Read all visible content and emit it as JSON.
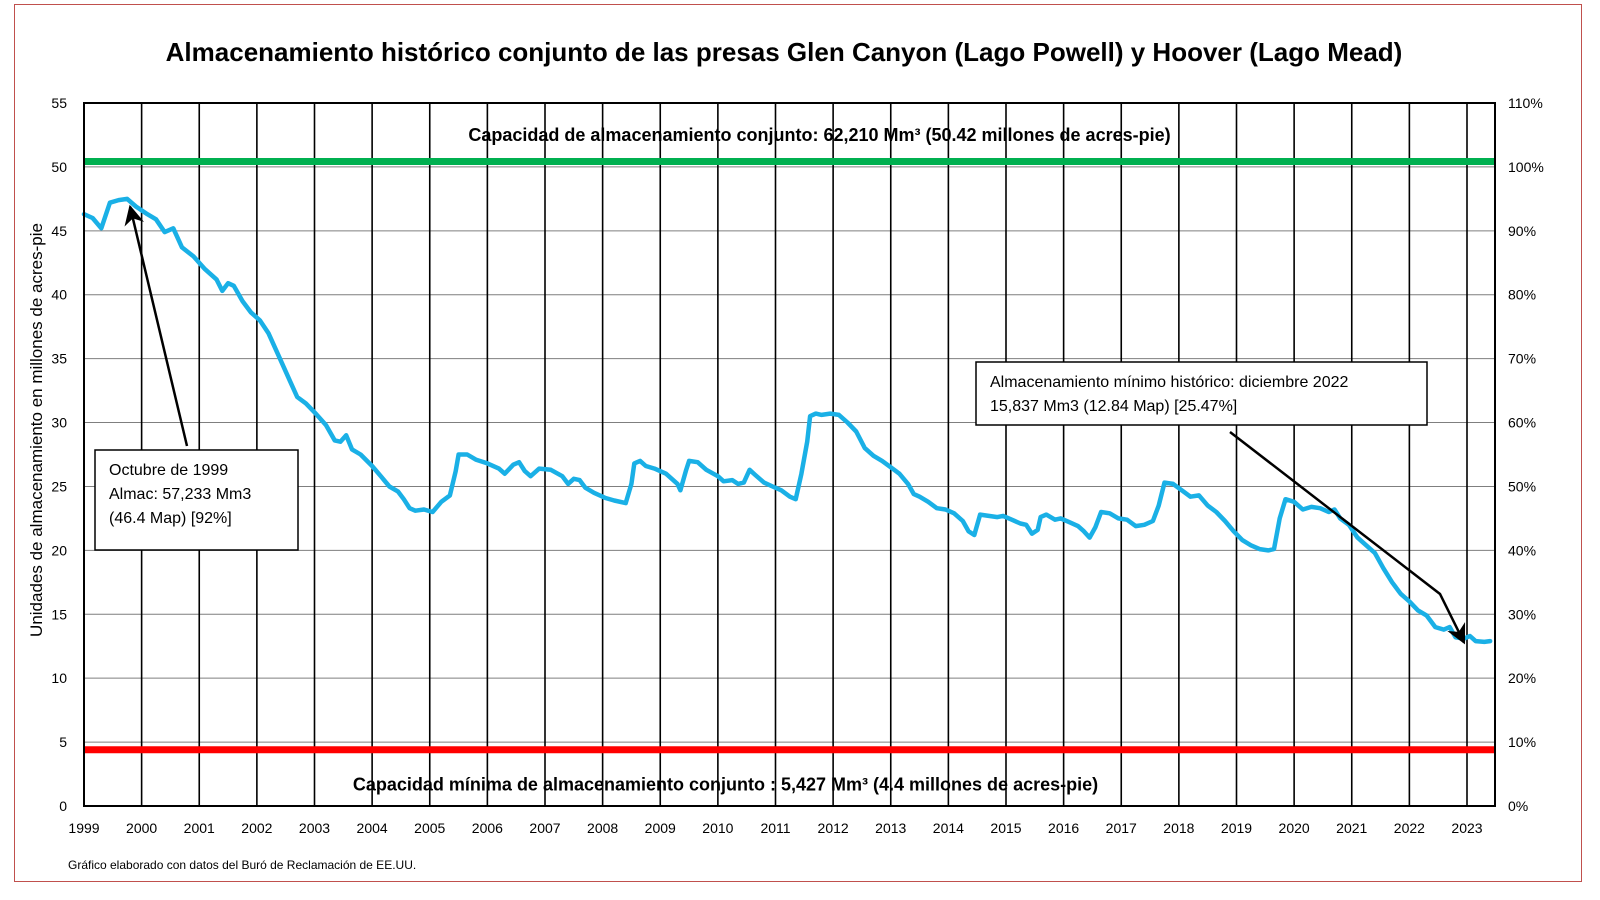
{
  "chart_data": {
    "type": "line",
    "title": "Almacenamiento histórico conjunto de las presas Glen Canyon (Lago Powell) y Hoover (Lago Mead)",
    "ylabel": "Unidades de almacenamiento en millones de acres-pie",
    "ylim": [
      0,
      55
    ],
    "y_ticks": [
      "0",
      "5",
      "10",
      "15",
      "20",
      "25",
      "30",
      "35",
      "40",
      "45",
      "50",
      "55"
    ],
    "y2lim": [
      0,
      110
    ],
    "y2_ticks": [
      "0%",
      "10%",
      "20%",
      "30%",
      "40%",
      "50%",
      "60%",
      "70%",
      "80%",
      "90%",
      "100%",
      "110%"
    ],
    "x_ticks": [
      "1999",
      "2000",
      "2001",
      "2002",
      "2003",
      "2004",
      "2005",
      "2006",
      "2007",
      "2008",
      "2009",
      "2010",
      "2011",
      "2012",
      "2013",
      "2014",
      "2015",
      "2016",
      "2017",
      "2018",
      "2019",
      "2020",
      "2021",
      "2022",
      "2023"
    ],
    "xlim": [
      1999,
      2023.3
    ],
    "grid": true,
    "series": [
      {
        "color": "#1ab0e6",
        "points": [
          [
            1999.0,
            46.3
          ],
          [
            1999.15,
            46.0
          ],
          [
            1999.3,
            45.2
          ],
          [
            1999.45,
            47.2
          ],
          [
            1999.6,
            47.4
          ],
          [
            1999.75,
            47.5
          ],
          [
            1999.9,
            46.9
          ],
          [
            2000.1,
            46.3
          ],
          [
            2000.25,
            45.9
          ],
          [
            2000.4,
            44.9
          ],
          [
            2000.55,
            45.2
          ],
          [
            2000.7,
            43.7
          ],
          [
            2000.9,
            43.0
          ],
          [
            2001.1,
            42.0
          ],
          [
            2001.3,
            41.2
          ],
          [
            2001.4,
            40.3
          ],
          [
            2001.5,
            40.9
          ],
          [
            2001.6,
            40.7
          ],
          [
            2001.75,
            39.5
          ],
          [
            2001.9,
            38.6
          ],
          [
            2002.05,
            38.0
          ],
          [
            2002.2,
            37.0
          ],
          [
            2002.4,
            35.0
          ],
          [
            2002.6,
            33.0
          ],
          [
            2002.7,
            32.0
          ],
          [
            2002.85,
            31.5
          ],
          [
            2003.0,
            30.8
          ],
          [
            2003.2,
            29.8
          ],
          [
            2003.35,
            28.6
          ],
          [
            2003.45,
            28.5
          ],
          [
            2003.55,
            29.0
          ],
          [
            2003.65,
            27.9
          ],
          [
            2003.8,
            27.5
          ],
          [
            2004.0,
            26.6
          ],
          [
            2004.15,
            25.8
          ],
          [
            2004.3,
            25.0
          ],
          [
            2004.45,
            24.6
          ],
          [
            2004.55,
            24.0
          ],
          [
            2004.65,
            23.3
          ],
          [
            2004.75,
            23.1
          ],
          [
            2004.9,
            23.2
          ],
          [
            2005.05,
            23.0
          ],
          [
            2005.2,
            23.8
          ],
          [
            2005.35,
            24.3
          ],
          [
            2005.45,
            26.2
          ],
          [
            2005.5,
            27.5
          ],
          [
            2005.65,
            27.5
          ],
          [
            2005.8,
            27.1
          ],
          [
            2006.0,
            26.8
          ],
          [
            2006.2,
            26.4
          ],
          [
            2006.3,
            26.0
          ],
          [
            2006.45,
            26.7
          ],
          [
            2006.55,
            26.9
          ],
          [
            2006.65,
            26.2
          ],
          [
            2006.75,
            25.8
          ],
          [
            2006.85,
            26.2
          ],
          [
            2006.9,
            26.4
          ],
          [
            2007.1,
            26.3
          ],
          [
            2007.3,
            25.8
          ],
          [
            2007.4,
            25.2
          ],
          [
            2007.5,
            25.6
          ],
          [
            2007.6,
            25.5
          ],
          [
            2007.7,
            24.9
          ],
          [
            2007.85,
            24.5
          ],
          [
            2008.05,
            24.1
          ],
          [
            2008.2,
            23.9
          ],
          [
            2008.4,
            23.7
          ],
          [
            2008.5,
            25.2
          ],
          [
            2008.55,
            26.8
          ],
          [
            2008.65,
            27.0
          ],
          [
            2008.75,
            26.6
          ],
          [
            2008.9,
            26.4
          ],
          [
            2009.1,
            26.0
          ],
          [
            2009.3,
            25.2
          ],
          [
            2009.35,
            24.7
          ],
          [
            2009.45,
            26.3
          ],
          [
            2009.5,
            27.0
          ],
          [
            2009.65,
            26.9
          ],
          [
            2009.8,
            26.3
          ],
          [
            2010.0,
            25.8
          ],
          [
            2010.1,
            25.4
          ],
          [
            2010.25,
            25.5
          ],
          [
            2010.35,
            25.2
          ],
          [
            2010.45,
            25.3
          ],
          [
            2010.55,
            26.3
          ],
          [
            2010.65,
            25.9
          ],
          [
            2010.8,
            25.3
          ],
          [
            2010.95,
            25.0
          ],
          [
            2011.1,
            24.7
          ],
          [
            2011.25,
            24.2
          ],
          [
            2011.35,
            24.0
          ],
          [
            2011.45,
            26.0
          ],
          [
            2011.55,
            28.5
          ],
          [
            2011.6,
            30.5
          ],
          [
            2011.7,
            30.7
          ],
          [
            2011.8,
            30.6
          ],
          [
            2011.95,
            30.7
          ],
          [
            2012.1,
            30.6
          ],
          [
            2012.25,
            30.0
          ],
          [
            2012.4,
            29.3
          ],
          [
            2012.55,
            28.0
          ],
          [
            2012.7,
            27.4
          ],
          [
            2012.85,
            27.0
          ],
          [
            2013.0,
            26.5
          ],
          [
            2013.15,
            26.0
          ],
          [
            2013.3,
            25.2
          ],
          [
            2013.4,
            24.4
          ],
          [
            2013.5,
            24.2
          ],
          [
            2013.65,
            23.8
          ],
          [
            2013.8,
            23.3
          ],
          [
            2013.95,
            23.2
          ],
          [
            2014.1,
            22.9
          ],
          [
            2014.25,
            22.3
          ],
          [
            2014.35,
            21.5
          ],
          [
            2014.45,
            21.2
          ],
          [
            2014.55,
            22.8
          ],
          [
            2014.7,
            22.7
          ],
          [
            2014.85,
            22.6
          ],
          [
            2014.95,
            22.7
          ],
          [
            2015.1,
            22.4
          ],
          [
            2015.25,
            22.1
          ],
          [
            2015.35,
            22.0
          ],
          [
            2015.45,
            21.3
          ],
          [
            2015.55,
            21.6
          ],
          [
            2015.6,
            22.6
          ],
          [
            2015.7,
            22.8
          ],
          [
            2015.85,
            22.4
          ],
          [
            2015.95,
            22.5
          ],
          [
            2016.1,
            22.2
          ],
          [
            2016.25,
            21.9
          ],
          [
            2016.35,
            21.5
          ],
          [
            2016.45,
            21.0
          ],
          [
            2016.55,
            21.8
          ],
          [
            2016.65,
            23.0
          ],
          [
            2016.8,
            22.9
          ],
          [
            2016.95,
            22.5
          ],
          [
            2017.1,
            22.4
          ],
          [
            2017.25,
            21.9
          ],
          [
            2017.4,
            22.0
          ],
          [
            2017.55,
            22.3
          ],
          [
            2017.65,
            23.5
          ],
          [
            2017.75,
            25.3
          ],
          [
            2017.9,
            25.2
          ],
          [
            2018.05,
            24.7
          ],
          [
            2018.2,
            24.2
          ],
          [
            2018.35,
            24.3
          ],
          [
            2018.5,
            23.5
          ],
          [
            2018.65,
            23.0
          ],
          [
            2018.8,
            22.3
          ],
          [
            2018.95,
            21.5
          ],
          [
            2019.1,
            20.8
          ],
          [
            2019.25,
            20.4
          ],
          [
            2019.4,
            20.1
          ],
          [
            2019.55,
            20.0
          ],
          [
            2019.65,
            20.1
          ],
          [
            2019.75,
            22.5
          ],
          [
            2019.85,
            24.0
          ],
          [
            2020.0,
            23.8
          ],
          [
            2020.15,
            23.2
          ],
          [
            2020.3,
            23.4
          ],
          [
            2020.45,
            23.3
          ],
          [
            2020.6,
            23.0
          ],
          [
            2020.7,
            23.2
          ],
          [
            2020.8,
            22.5
          ],
          [
            2020.95,
            22.0
          ],
          [
            2021.1,
            21.0
          ],
          [
            2021.25,
            20.4
          ],
          [
            2021.4,
            19.8
          ],
          [
            2021.55,
            18.6
          ],
          [
            2021.7,
            17.5
          ],
          [
            2021.85,
            16.6
          ],
          [
            2022.0,
            16.0
          ],
          [
            2022.15,
            15.3
          ],
          [
            2022.3,
            14.9
          ],
          [
            2022.45,
            14.0
          ],
          [
            2022.6,
            13.8
          ],
          [
            2022.7,
            14.0
          ],
          [
            2022.8,
            13.2
          ],
          [
            2022.95,
            13.1
          ],
          [
            2023.05,
            13.3
          ],
          [
            2023.15,
            12.9
          ],
          [
            2023.3,
            12.84
          ],
          [
            2023.4,
            12.9
          ]
        ]
      }
    ],
    "reference_lines": [
      {
        "value": 50.42,
        "color": "#00b050",
        "label": "Capacidad de almacenamiento conjunto: 62,210 Mm³ (50.42 millones de acres-pie)"
      },
      {
        "value": 4.4,
        "color": "#ff0000",
        "label": "Capacidad mínima de almacenamiento conjunto : 5,427 Mm³ (4.4 millones de acres-pie)"
      }
    ],
    "annotations": [
      {
        "lines": [
          "Octubre de 1999",
          "Almac: 57,233 Mm3",
          "(46.4 Map) [92%]"
        ],
        "target": [
          1999.8,
          47.2
        ]
      },
      {
        "lines": [
          "Almacenamiento mínimo histórico: diciembre 2022",
          "15,837 Mm3 (12.84 Map) [25.47%]"
        ],
        "target": [
          2022.95,
          13.1
        ]
      }
    ],
    "note": "Gráfico elaborado con datos del Buró de Reclamación de EE.UU."
  }
}
